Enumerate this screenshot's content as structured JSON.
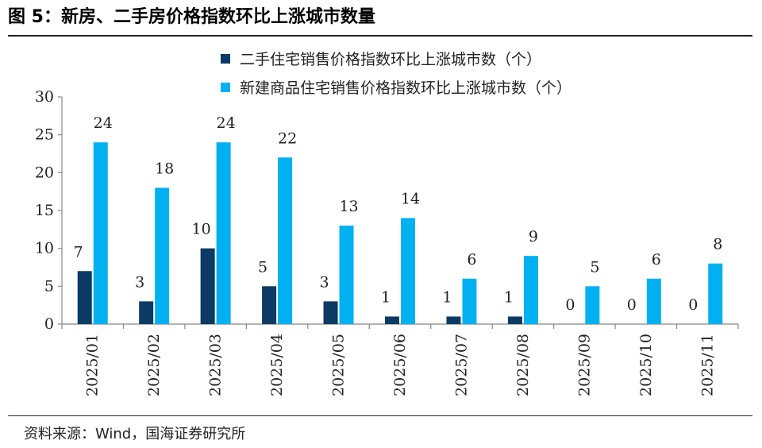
{
  "figure_title": "图 5：新房、二手房价格指数环比上涨城市数量",
  "source": "资料来源：Wind，国海证券研究所",
  "colors": {
    "series1": "#0b3a64",
    "series2": "#00b0f0",
    "axis": "#888888",
    "text": "#222222"
  },
  "chart_data": {
    "type": "bar",
    "title": "",
    "xlabel": "",
    "ylabel": "",
    "ylim": [
      0,
      30
    ],
    "yticks": [
      0,
      5,
      10,
      15,
      20,
      25,
      30
    ],
    "grid": false,
    "legend_position": "top",
    "categories": [
      "2025/01",
      "2025/02",
      "2025/03",
      "2025/04",
      "2025/05",
      "2025/06",
      "2025/07",
      "2025/08",
      "2025/09",
      "2025/10",
      "2025/11"
    ],
    "series": [
      {
        "name": "二手住宅销售价格指数环比上涨城市数（个）",
        "values": [
          7,
          3,
          10,
          5,
          3,
          1,
          1,
          1,
          0,
          0,
          0
        ]
      },
      {
        "name": "新建商品住宅销售价格指数环比上涨城市数（个）",
        "values": [
          24,
          18,
          24,
          22,
          13,
          14,
          6,
          9,
          5,
          6,
          8
        ]
      }
    ]
  }
}
